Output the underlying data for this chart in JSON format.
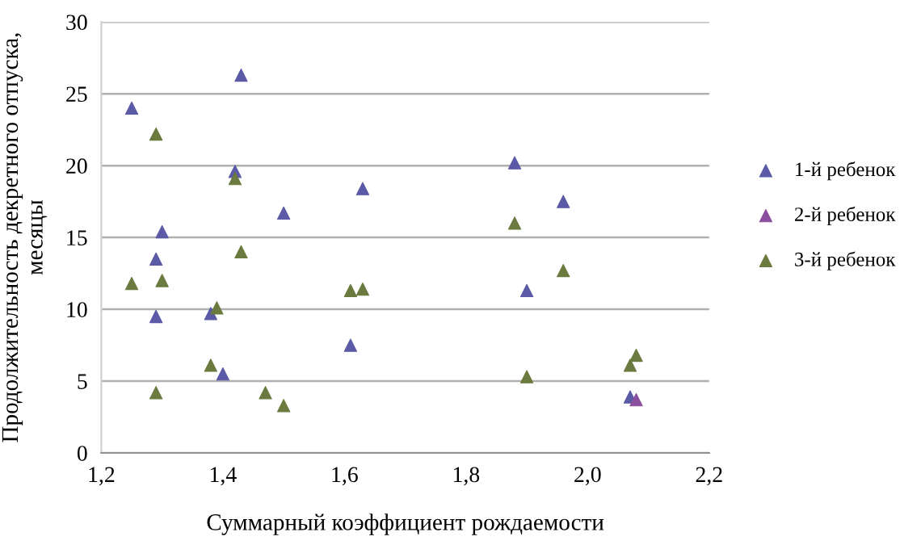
{
  "chart_data": {
    "type": "scatter",
    "xlabel": "Суммарный коэффициент рождаемости",
    "ylabel": "Продолжительность декретного отпуска, месяцы",
    "xlim": [
      1.2,
      2.2
    ],
    "xticks": [
      {
        "value": 1.2,
        "label": "1,2"
      },
      {
        "value": 1.4,
        "label": "1,4"
      },
      {
        "value": 1.6,
        "label": "1,6"
      },
      {
        "value": 1.8,
        "label": "1,8"
      },
      {
        "value": 2.0,
        "label": "2,0"
      },
      {
        "value": 2.2,
        "label": "2,2"
      }
    ],
    "ylim": [
      0,
      30
    ],
    "yticks": [
      0,
      5,
      10,
      15,
      20,
      25,
      30
    ],
    "grid": "y",
    "legend": "right",
    "marker": "triangle",
    "series": [
      {
        "name": "1-й ребенок",
        "color": "#5b5aa6",
        "x": [
          1.25,
          1.43,
          1.42,
          1.5,
          1.3,
          1.29,
          1.29,
          1.38,
          1.4,
          1.61,
          1.63,
          1.88,
          1.96,
          1.9,
          2.07
        ],
        "values": [
          24,
          26.3,
          19.6,
          16.7,
          15.4,
          13.5,
          9.5,
          9.7,
          5.5,
          7.5,
          18.4,
          20.2,
          17.5,
          11.3,
          3.9
        ]
      },
      {
        "name": "2-й ребенок",
        "color": "#8c4f9f",
        "x": [
          2.08
        ],
        "values": [
          3.7
        ]
      },
      {
        "name": "3-й ребенок",
        "color": "#6b7a3e",
        "x": [
          1.29,
          1.42,
          1.43,
          1.25,
          1.3,
          1.39,
          1.38,
          1.29,
          1.47,
          1.5,
          1.61,
          1.63,
          1.88,
          1.96,
          1.9,
          2.07,
          2.08
        ],
        "values": [
          22.2,
          19.1,
          14,
          11.8,
          12,
          10.1,
          6.1,
          4.2,
          4.2,
          3.3,
          11.3,
          11.4,
          16,
          12.7,
          5.3,
          6.1,
          6.8
        ]
      }
    ]
  }
}
